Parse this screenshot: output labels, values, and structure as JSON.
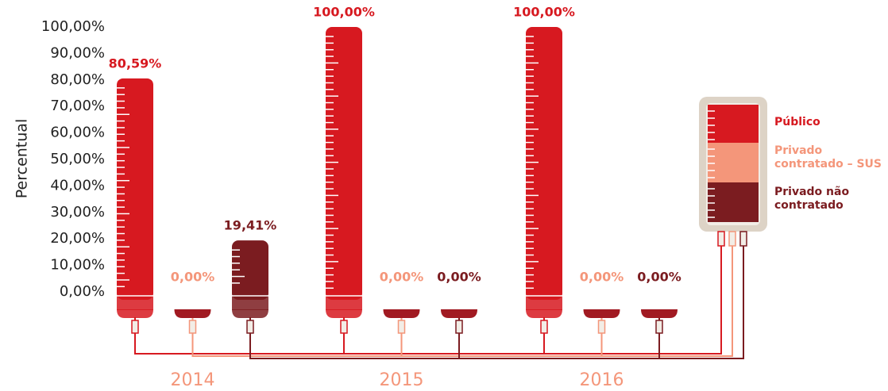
{
  "chart_data": {
    "type": "bar",
    "y_label": "Percentual",
    "categories": [
      "2014",
      "2015",
      "2016"
    ],
    "series": [
      {
        "name": "Público",
        "color": "#d71920",
        "values": [
          80.59,
          100,
          100
        ],
        "value_labels": [
          "80,59%",
          "100,00%",
          "100,00%"
        ]
      },
      {
        "name": "Privado contratado – SUS",
        "color": "#f4967a",
        "values": [
          0,
          0,
          0
        ],
        "value_labels": [
          "0,00%",
          "0,00%",
          "0,00%"
        ]
      },
      {
        "name": "Privado não contratado",
        "color": "#7b1c20",
        "values": [
          19.41,
          0,
          0
        ],
        "value_labels": [
          "19,41%",
          "0,00%",
          "0,00%"
        ]
      }
    ],
    "ylim": [
      0,
      100
    ],
    "yticks": [
      {
        "value": 0,
        "label": "0,00%"
      },
      {
        "value": 10,
        "label": "10,00%"
      },
      {
        "value": 20,
        "label": "20,00%"
      },
      {
        "value": 30,
        "label": "30,00%"
      },
      {
        "value": 40,
        "label": "40,00%"
      },
      {
        "value": 50,
        "label": "50,00%"
      },
      {
        "value": 60,
        "label": "60,00%"
      },
      {
        "value": 70,
        "label": "70,00%"
      },
      {
        "value": 80,
        "label": "80,00%"
      },
      {
        "value": 90,
        "label": "90,00%"
      },
      {
        "value": 100,
        "label": "100,00%"
      }
    ]
  }
}
